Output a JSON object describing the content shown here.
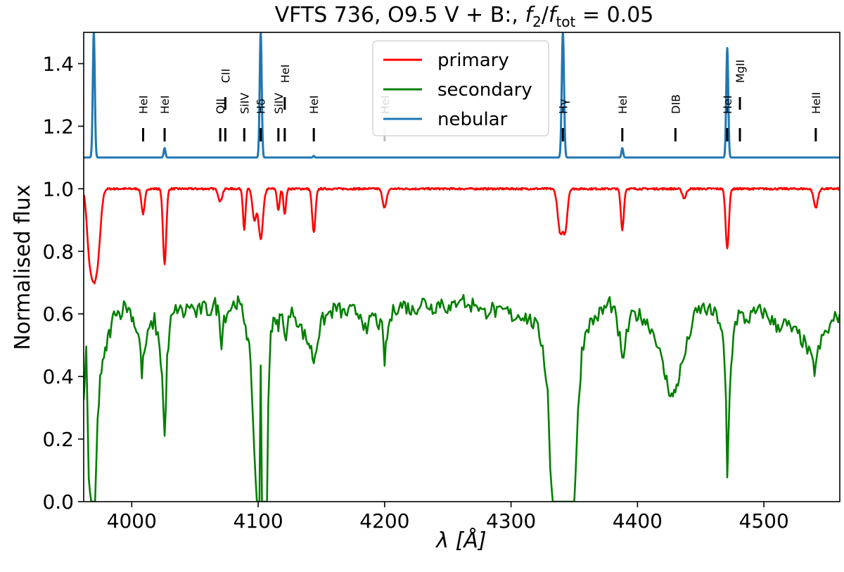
{
  "chart_data": {
    "type": "line",
    "title": "VFTS 736, O9.5 V + B:, f2/ftot = 0.05",
    "title_parts": {
      "prefix": "VFTS 736, O9.5 V + B:, ",
      "f": "f",
      "sub2": "2",
      "sub_tot": "tot",
      "suffix": " = 0.05"
    },
    "xlabel": "λ [Å]",
    "ylabel": "Normalised flux",
    "xlim": [
      3962,
      4560
    ],
    "ylim": [
      0.0,
      1.5
    ],
    "xticks": [
      4000,
      4100,
      4200,
      4300,
      4400,
      4500
    ],
    "xtick_labels": [
      "4000",
      "4100",
      "4200",
      "4300",
      "4400",
      "4500"
    ],
    "yticks": [
      0.0,
      0.2,
      0.4,
      0.6,
      0.8,
      1.0,
      1.2,
      1.4
    ],
    "ytick_labels": [
      "0.0",
      "0.2",
      "0.4",
      "0.6",
      "0.8",
      "1.0",
      "1.2",
      "1.4"
    ],
    "legend": {
      "placement": "top-center",
      "entries": [
        {
          "label": "primary",
          "color": "#ff0000"
        },
        {
          "label": "secondary",
          "color": "#008000"
        },
        {
          "label": "nebular",
          "color": "#1f77b4"
        }
      ]
    },
    "series": [
      {
        "name": "primary",
        "color": "#ff0000",
        "continuum": 1.0,
        "start": {
          "x": 3962,
          "y": 0.97
        },
        "lines": [
          {
            "center": 3966,
            "depth": 0.1,
            "width": 1.8
          },
          {
            "center": 3970,
            "depth": 0.28,
            "width": 3.0
          },
          {
            "center": 3974,
            "depth": 0.09,
            "width": 2.0
          },
          {
            "center": 4009,
            "depth": 0.08,
            "width": 1.3
          },
          {
            "center": 4026,
            "depth": 0.24,
            "width": 1.3
          },
          {
            "center": 4070,
            "depth": 0.04,
            "width": 1.5
          },
          {
            "center": 4089,
            "depth": 0.13,
            "width": 1.0
          },
          {
            "center": 4097,
            "depth": 0.1,
            "width": 1.5
          },
          {
            "center": 4102,
            "depth": 0.16,
            "width": 1.8
          },
          {
            "center": 4116,
            "depth": 0.07,
            "width": 1.0
          },
          {
            "center": 4121,
            "depth": 0.08,
            "width": 1.0
          },
          {
            "center": 4144,
            "depth": 0.14,
            "width": 1.3
          },
          {
            "center": 4200,
            "depth": 0.06,
            "width": 1.6
          },
          {
            "center": 4339,
            "depth": 0.14,
            "width": 2.0
          },
          {
            "center": 4343,
            "depth": 0.12,
            "width": 1.6
          },
          {
            "center": 4388,
            "depth": 0.13,
            "width": 1.2
          },
          {
            "center": 4437,
            "depth": 0.03,
            "width": 1.5
          },
          {
            "center": 4471,
            "depth": 0.19,
            "width": 1.3
          },
          {
            "center": 4541,
            "depth": 0.06,
            "width": 1.6
          }
        ]
      },
      {
        "name": "secondary",
        "color": "#008000",
        "continuum": 0.62,
        "points": [
          [
            3962,
            0.32
          ],
          [
            3964,
            0.5
          ],
          [
            3966,
            0.05
          ],
          [
            3968,
            0.0
          ],
          [
            3971,
            0.0
          ],
          [
            3973,
            0.25
          ],
          [
            3975,
            0.4
          ],
          [
            3978,
            0.45
          ],
          [
            3981,
            0.52
          ],
          [
            3984,
            0.56
          ],
          [
            3987,
            0.62
          ],
          [
            3990,
            0.6
          ],
          [
            3995,
            0.63
          ],
          [
            4000,
            0.6
          ],
          [
            4003,
            0.56
          ],
          [
            4006,
            0.52
          ],
          [
            4008,
            0.41
          ],
          [
            4010,
            0.48
          ],
          [
            4014,
            0.55
          ],
          [
            4018,
            0.58
          ],
          [
            4022,
            0.5
          ],
          [
            4024,
            0.4
          ],
          [
            4026,
            0.2
          ],
          [
            4028,
            0.45
          ],
          [
            4031,
            0.58
          ],
          [
            4036,
            0.62
          ],
          [
            4041,
            0.6
          ],
          [
            4046,
            0.63
          ],
          [
            4051,
            0.6
          ],
          [
            4056,
            0.62
          ],
          [
            4061,
            0.61
          ],
          [
            4066,
            0.63
          ],
          [
            4069,
            0.6
          ],
          [
            4071,
            0.51
          ],
          [
            4073,
            0.59
          ],
          [
            4078,
            0.62
          ],
          [
            4083,
            0.64
          ],
          [
            4086,
            0.62
          ],
          [
            4088,
            0.6
          ],
          [
            4090,
            0.57
          ],
          [
            4093,
            0.48
          ],
          [
            4095,
            0.36
          ],
          [
            4097,
            0.15
          ],
          [
            4099,
            0.0
          ],
          [
            4101,
            0.0
          ],
          [
            4102,
            0.45
          ],
          [
            4103,
            0.0
          ],
          [
            4107,
            0.0
          ],
          [
            4108,
            0.3
          ],
          [
            4110,
            0.55
          ],
          [
            4113,
            0.6
          ],
          [
            4116,
            0.54
          ],
          [
            4118,
            0.62
          ],
          [
            4121,
            0.52
          ],
          [
            4124,
            0.58
          ],
          [
            4128,
            0.61
          ],
          [
            4133,
            0.56
          ],
          [
            4138,
            0.52
          ],
          [
            4141,
            0.5
          ],
          [
            4144,
            0.45
          ],
          [
            4147,
            0.52
          ],
          [
            4151,
            0.58
          ],
          [
            4156,
            0.6
          ],
          [
            4162,
            0.62
          ],
          [
            4168,
            0.6
          ],
          [
            4175,
            0.61
          ],
          [
            4182,
            0.6
          ],
          [
            4186,
            0.52
          ],
          [
            4189,
            0.6
          ],
          [
            4194,
            0.58
          ],
          [
            4198,
            0.55
          ],
          [
            4200,
            0.45
          ],
          [
            4203,
            0.56
          ],
          [
            4208,
            0.62
          ],
          [
            4215,
            0.63
          ],
          [
            4222,
            0.61
          ],
          [
            4230,
            0.64
          ],
          [
            4238,
            0.62
          ],
          [
            4245,
            0.64
          ],
          [
            4252,
            0.61
          ],
          [
            4260,
            0.66
          ],
          [
            4266,
            0.62
          ],
          [
            4272,
            0.64
          ],
          [
            4278,
            0.6
          ],
          [
            4284,
            0.62
          ],
          [
            4290,
            0.6
          ],
          [
            4296,
            0.61
          ],
          [
            4302,
            0.59
          ],
          [
            4308,
            0.6
          ],
          [
            4315,
            0.58
          ],
          [
            4320,
            0.56
          ],
          [
            4325,
            0.5
          ],
          [
            4329,
            0.35
          ],
          [
            4331,
            0.12
          ],
          [
            4333,
            0.0
          ],
          [
            4350,
            0.0
          ],
          [
            4353,
            0.28
          ],
          [
            4356,
            0.48
          ],
          [
            4360,
            0.56
          ],
          [
            4365,
            0.58
          ],
          [
            4370,
            0.6
          ],
          [
            4375,
            0.62
          ],
          [
            4378,
            0.64
          ],
          [
            4382,
            0.6
          ],
          [
            4386,
            0.52
          ],
          [
            4388,
            0.44
          ],
          [
            4390,
            0.5
          ],
          [
            4394,
            0.58
          ],
          [
            4398,
            0.6
          ],
          [
            4404,
            0.59
          ],
          [
            4410,
            0.56
          ],
          [
            4415,
            0.52
          ],
          [
            4419,
            0.45
          ],
          [
            4422,
            0.4
          ],
          [
            4425,
            0.36
          ],
          [
            4428,
            0.33
          ],
          [
            4431,
            0.37
          ],
          [
            4434,
            0.42
          ],
          [
            4438,
            0.48
          ],
          [
            4442,
            0.55
          ],
          [
            4446,
            0.6
          ],
          [
            4451,
            0.62
          ],
          [
            4456,
            0.61
          ],
          [
            4461,
            0.6
          ],
          [
            4465,
            0.58
          ],
          [
            4468,
            0.5
          ],
          [
            4470,
            0.32
          ],
          [
            4471,
            0.07
          ],
          [
            4473,
            0.36
          ],
          [
            4476,
            0.55
          ],
          [
            4480,
            0.6
          ],
          [
            4486,
            0.58
          ],
          [
            4492,
            0.6
          ],
          [
            4498,
            0.61
          ],
          [
            4504,
            0.59
          ],
          [
            4510,
            0.56
          ],
          [
            4516,
            0.57
          ],
          [
            4522,
            0.55
          ],
          [
            4528,
            0.53
          ],
          [
            4533,
            0.5
          ],
          [
            4537,
            0.46
          ],
          [
            4540,
            0.42
          ],
          [
            4543,
            0.48
          ],
          [
            4547,
            0.53
          ],
          [
            4551,
            0.55
          ],
          [
            4555,
            0.58
          ],
          [
            4560,
            0.6
          ]
        ],
        "noise_amplitude": 0.025
      },
      {
        "name": "nebular",
        "color": "#1f77b4",
        "continuum": 1.1,
        "peaks": [
          {
            "center": 3970,
            "peak": 1.5,
            "width": 0.8
          },
          {
            "center": 4026,
            "peak": 1.13,
            "width": 0.7
          },
          {
            "center": 4102,
            "peak": 1.5,
            "width": 0.8
          },
          {
            "center": 4144,
            "peak": 1.105,
            "width": 0.6
          },
          {
            "center": 4341,
            "peak": 1.5,
            "width": 0.9
          },
          {
            "center": 4388,
            "peak": 1.13,
            "width": 0.7
          },
          {
            "center": 4471,
            "peak": 1.45,
            "width": 0.8
          }
        ]
      }
    ],
    "line_markers": [
      {
        "label": "HeI",
        "x": 4009,
        "tier": 1,
        "faded": false
      },
      {
        "label": "HeI",
        "x": 4026,
        "tier": 1,
        "faded": false
      },
      {
        "label": "OII",
        "x": 4070,
        "tier": 1,
        "faded": false
      },
      {
        "label": "CII",
        "x": 4074,
        "tier": 2,
        "faded": false
      },
      {
        "label": "SiIV",
        "x": 4089,
        "tier": 1,
        "faded": false
      },
      {
        "label": "Hδ",
        "x": 4102,
        "tier": 1,
        "faded": false
      },
      {
        "label": "SiIV",
        "x": 4116,
        "tier": 1,
        "faded": false
      },
      {
        "label": "HeI",
        "x": 4121,
        "tier": 2,
        "faded": false
      },
      {
        "label": "HeI",
        "x": 4144,
        "tier": 1,
        "faded": false
      },
      {
        "label": "HeI",
        "x": 4200,
        "tier": 1,
        "faded": true
      },
      {
        "label": "Hγ",
        "x": 4341,
        "tier": 1,
        "faded": false
      },
      {
        "label": "HeI",
        "x": 4388,
        "tier": 1,
        "faded": false
      },
      {
        "label": "DIB",
        "x": 4430,
        "tier": 1,
        "faded": false
      },
      {
        "label": "HeI",
        "x": 4471,
        "tier": 1,
        "faded": false
      },
      {
        "label": "MgII",
        "x": 4481,
        "tier": 2,
        "faded": false
      },
      {
        "label": "HeII",
        "x": 4541,
        "tier": 1,
        "faded": false
      }
    ]
  }
}
